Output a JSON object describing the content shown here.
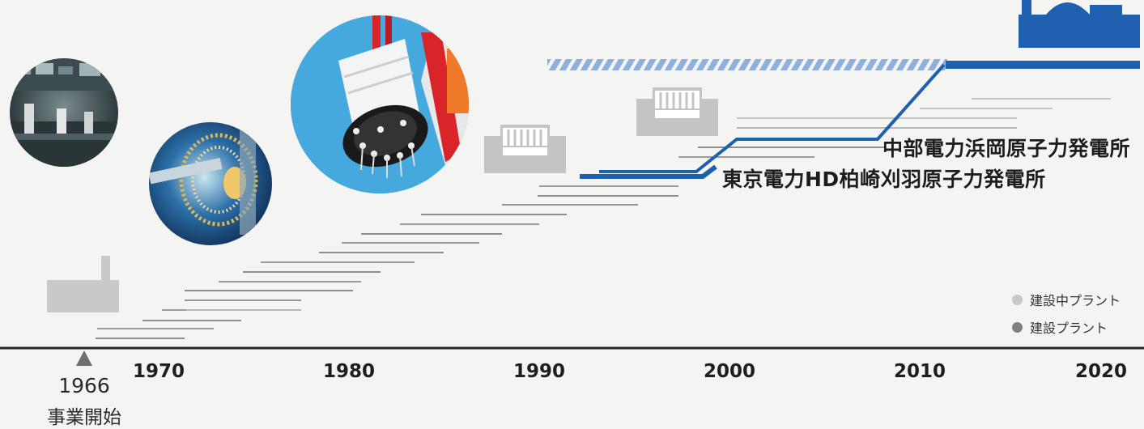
{
  "timeline": {
    "years": [
      "1970",
      "1980",
      "1990",
      "2000",
      "2010",
      "2020"
    ],
    "start_year": "1966",
    "start_label": "事業開始"
  },
  "plants": {
    "hamaoka": "中部電力浜岡原子力発電所",
    "kashiwazaki": "東京電力HD柏崎刈羽原子力発電所"
  },
  "legend": {
    "under_construction": "建設中プラント",
    "constructed": "建設プラント"
  },
  "colors": {
    "accent_blue": "#1e5fb0",
    "gray_bar": "#999999",
    "light_gray_bar": "#c6c6c6",
    "legend_light": "#c8c8c8",
    "legend_dark": "#808080"
  }
}
